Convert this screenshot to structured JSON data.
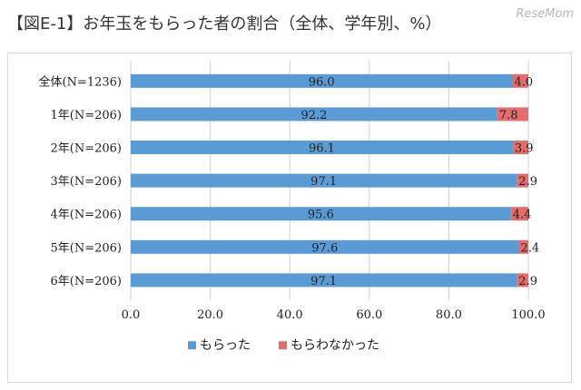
{
  "header": {
    "title": "【図E-1】お年玉をもらった者の割合（全体、学年別、%）",
    "watermark": "ReseMom"
  },
  "colors": {
    "received": "#5b9bd5",
    "not_received": "#e46c6c",
    "grid": "#d0d0d0"
  },
  "chart_data": {
    "type": "bar",
    "orientation": "horizontal",
    "stacked": true,
    "title": "【図E-1】お年玉をもらった者の割合（全体、学年別、%）",
    "categories": [
      "全体(N=1236)",
      "1年(N=206)",
      "2年(N=206)",
      "3年(N=206)",
      "4年(N=206)",
      "5年(N=206)",
      "6年(N=206)"
    ],
    "series": [
      {
        "name": "もらった",
        "values": [
          96.0,
          92.2,
          96.1,
          97.1,
          95.6,
          97.6,
          97.1
        ]
      },
      {
        "name": "もらわなかった",
        "values": [
          4.0,
          7.8,
          3.9,
          2.9,
          4.4,
          2.4,
          2.9
        ]
      }
    ],
    "value_labels": [
      [
        "96.0",
        "92.2",
        "96.1",
        "97.1",
        "95.6",
        "97.6",
        "97.1"
      ],
      [
        "4.0",
        "7.8",
        "3.9",
        "2.9",
        "4.4",
        "2.4",
        "2.9"
      ]
    ],
    "xlim": [
      0,
      100
    ],
    "xticks": [
      0,
      20,
      40,
      60,
      80,
      100
    ],
    "xtick_labels": [
      "0.0",
      "20.0",
      "40.0",
      "60.0",
      "80.0",
      "100.0"
    ],
    "grid": true,
    "legend_position": "bottom"
  }
}
